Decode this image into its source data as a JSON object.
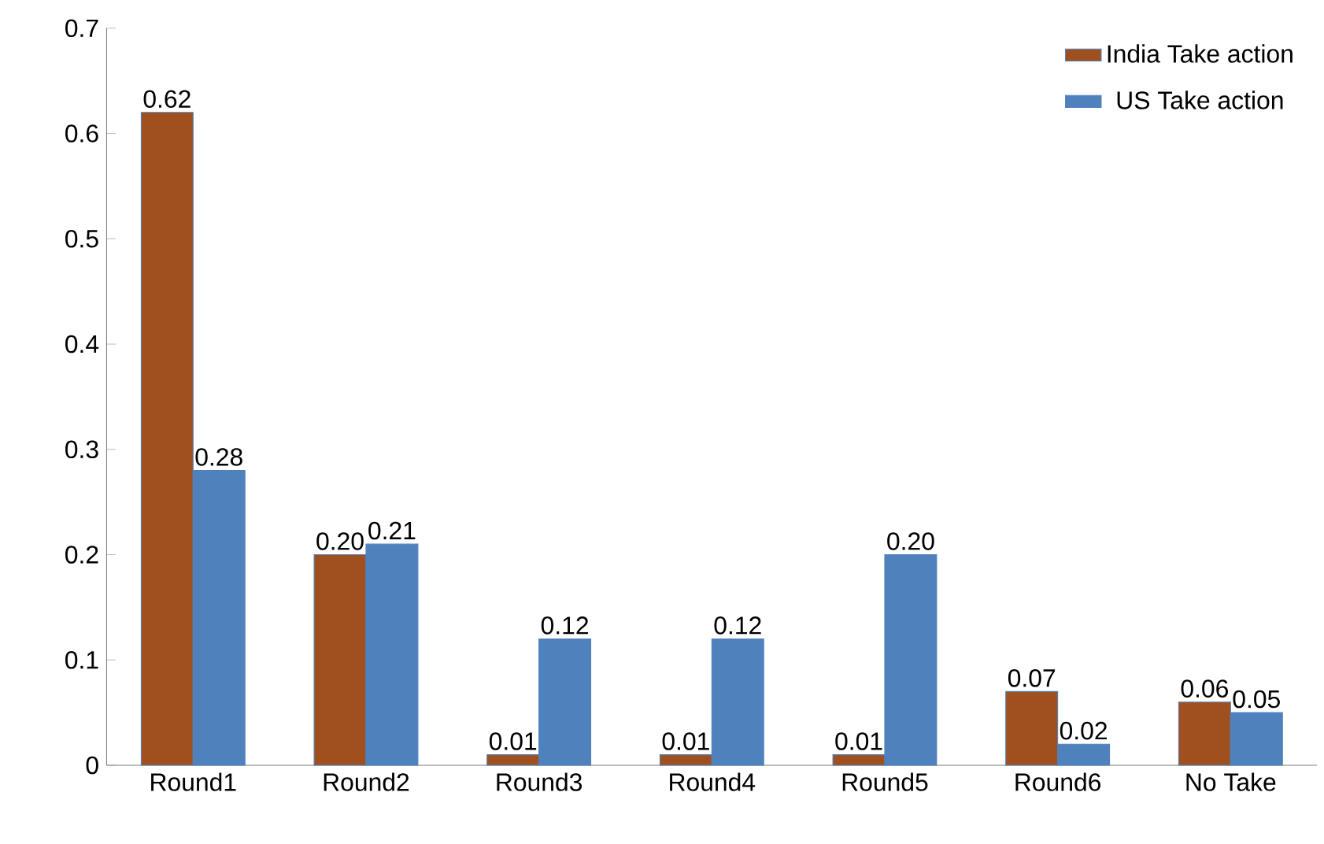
{
  "chart_data": {
    "type": "bar",
    "categories": [
      "Round1",
      "Round2",
      "Round3",
      "Round4",
      "Round5",
      "Round6",
      "No Take"
    ],
    "series": [
      {
        "name": "India Take action",
        "color": "#a0501e",
        "values": [
          0.62,
          0.2,
          0.01,
          0.01,
          0.01,
          0.07,
          0.06
        ],
        "value_labels": [
          "0.62",
          "0.20",
          "0.01",
          "0.01",
          "0.01",
          "0.07",
          "0.06"
        ]
      },
      {
        "name": "US Take action",
        "color": "#4f81bd",
        "values": [
          0.28,
          0.21,
          0.12,
          0.12,
          0.2,
          0.02,
          0.05
        ],
        "value_labels": [
          "0.28",
          "0.21",
          "0.12",
          "0.12",
          "0.20",
          "0.02",
          "0.05"
        ]
      }
    ],
    "ylim": [
      0,
      0.7
    ],
    "yticks": [
      0,
      0.1,
      0.2,
      0.3,
      0.4,
      0.5,
      0.6,
      0.7
    ],
    "legend": "top right",
    "grid": false
  }
}
